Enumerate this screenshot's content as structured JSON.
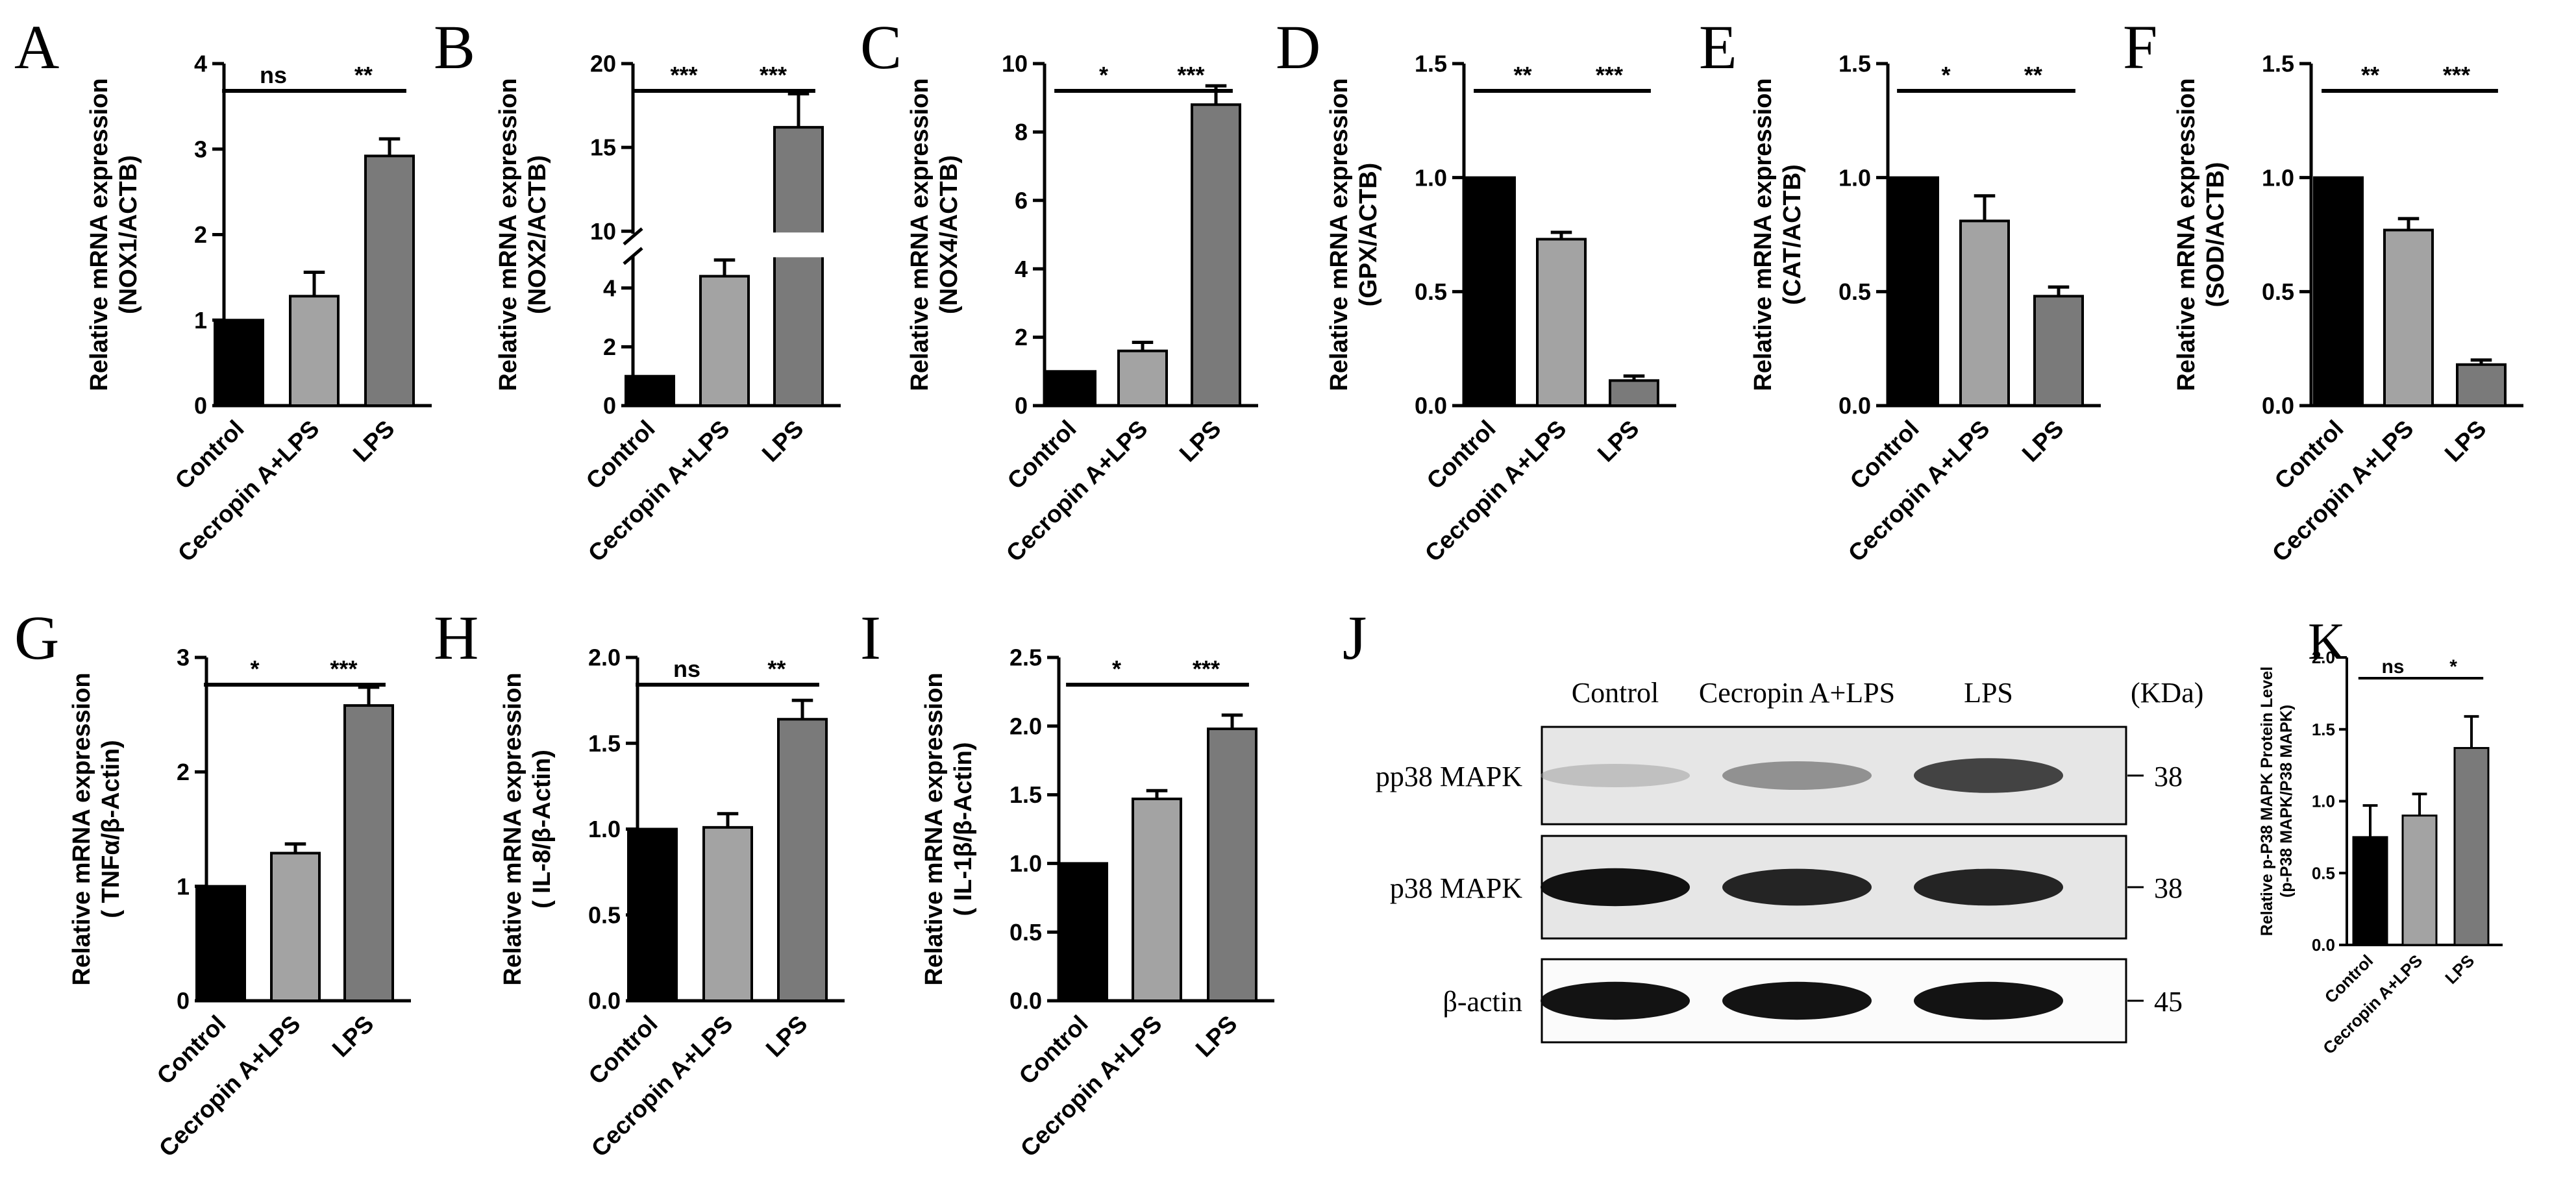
{
  "figure": {
    "panels": [
      "A",
      "B",
      "C",
      "D",
      "E",
      "F",
      "G",
      "H",
      "I",
      "J",
      "K"
    ]
  },
  "colors": {
    "control": "#000000",
    "cecropin": "#a3a3a3",
    "lps": "#7a7a7a",
    "axis": "#000000"
  },
  "chart_data": [
    {
      "panel": "A",
      "type": "bar",
      "categories": [
        "Control",
        "Cecropin A+LPS",
        "LPS"
      ],
      "values": [
        1.0,
        1.28,
        2.92
      ],
      "errors": [
        0.0,
        0.28,
        0.2
      ],
      "ylabel": "Relative mRNA expression",
      "ylabel2": "(NOX1/ACTB)",
      "ylim": [
        0,
        4
      ],
      "yticks": [
        0,
        1,
        2,
        3,
        4
      ],
      "significance": [
        {
          "from": 0,
          "to": 1,
          "label": "ns"
        },
        {
          "from": 1,
          "to": 2,
          "label": "**"
        }
      ]
    },
    {
      "panel": "B",
      "type": "bar",
      "categories": [
        "Control",
        "Cecropin A+LPS",
        "LPS"
      ],
      "values": [
        1.0,
        4.4,
        16.2
      ],
      "errors": [
        0.0,
        0.55,
        2.0
      ],
      "ylabel": "Relative mRNA expression",
      "ylabel2": "(NOX2/ACTB)",
      "ylim": [
        0,
        20
      ],
      "broken_axis": [
        5,
        10
      ],
      "yticks": [
        0,
        2,
        4,
        10,
        15,
        20
      ],
      "significance": [
        {
          "from": 0,
          "to": 1,
          "label": "***"
        },
        {
          "from": 1,
          "to": 2,
          "label": "***"
        }
      ]
    },
    {
      "panel": "C",
      "type": "bar",
      "categories": [
        "Control",
        "Cecropin A+LPS",
        "LPS"
      ],
      "values": [
        1.0,
        1.6,
        8.8
      ],
      "errors": [
        0.0,
        0.25,
        0.55
      ],
      "ylabel": "Relative mRNA expression",
      "ylabel2": "(NOX4/ACTB)",
      "ylim": [
        0,
        10
      ],
      "yticks": [
        0,
        2,
        4,
        6,
        8,
        10
      ],
      "significance": [
        {
          "from": 0,
          "to": 1,
          "label": "*"
        },
        {
          "from": 1,
          "to": 2,
          "label": "***"
        }
      ]
    },
    {
      "panel": "D",
      "type": "bar",
      "categories": [
        "Control",
        "Cecropin A+LPS",
        "LPS"
      ],
      "values": [
        1.0,
        0.73,
        0.11
      ],
      "errors": [
        0.0,
        0.03,
        0.02
      ],
      "ylabel": "Relative mRNA expression",
      "ylabel2": "(GPX/ACTB)",
      "ylim": [
        0,
        1.5
      ],
      "yticks": [
        "0.0",
        "0.5",
        "1.0",
        "1.5"
      ],
      "significance": [
        {
          "from": 0,
          "to": 1,
          "label": "**"
        },
        {
          "from": 1,
          "to": 2,
          "label": "***"
        }
      ]
    },
    {
      "panel": "E",
      "type": "bar",
      "categories": [
        "Control",
        "Cecropin A+LPS",
        "LPS"
      ],
      "values": [
        1.0,
        0.81,
        0.48
      ],
      "errors": [
        0.0,
        0.11,
        0.04
      ],
      "ylabel": "Relative mRNA expression",
      "ylabel2": "(CAT/ACTB)",
      "ylim": [
        0,
        1.5
      ],
      "yticks": [
        "0.0",
        "0.5",
        "1.0",
        "1.5"
      ],
      "significance": [
        {
          "from": 0,
          "to": 1,
          "label": "*"
        },
        {
          "from": 1,
          "to": 2,
          "label": "**"
        }
      ]
    },
    {
      "panel": "F",
      "type": "bar",
      "categories": [
        "Control",
        "Cecropin A+LPS",
        "LPS"
      ],
      "values": [
        1.0,
        0.77,
        0.18
      ],
      "errors": [
        0.0,
        0.05,
        0.02
      ],
      "ylabel": "Relative mRNA expression",
      "ylabel2": "(SOD/ACTB)",
      "ylim": [
        0,
        1.5
      ],
      "yticks": [
        "0.0",
        "0.5",
        "1.0",
        "1.5"
      ],
      "significance": [
        {
          "from": 0,
          "to": 1,
          "label": "**"
        },
        {
          "from": 1,
          "to": 2,
          "label": "***"
        }
      ]
    },
    {
      "panel": "G",
      "type": "bar",
      "categories": [
        "Control",
        "Cecropin A+LPS",
        "LPS"
      ],
      "values": [
        1.0,
        1.29,
        2.58
      ],
      "errors": [
        0.0,
        0.08,
        0.16
      ],
      "ylabel": "Relative mRNA expression",
      "ylabel2": "( TNFα/β-Actin)",
      "ylim": [
        0,
        3
      ],
      "yticks": [
        0,
        1,
        2,
        3
      ],
      "significance": [
        {
          "from": 0,
          "to": 1,
          "label": "*"
        },
        {
          "from": 1,
          "to": 2,
          "label": "***"
        }
      ]
    },
    {
      "panel": "H",
      "type": "bar",
      "categories": [
        "Control",
        "Cecropin A+LPS",
        "LPS"
      ],
      "values": [
        1.0,
        1.01,
        1.64
      ],
      "errors": [
        0.0,
        0.08,
        0.11
      ],
      "ylabel": "Relative mRNA expression",
      "ylabel2": "( IL-8/β-Actin)",
      "ylim": [
        0,
        2.0
      ],
      "yticks": [
        "0.0",
        "0.5",
        "1.0",
        "1.5",
        "2.0"
      ],
      "significance": [
        {
          "from": 0,
          "to": 1,
          "label": "ns"
        },
        {
          "from": 1,
          "to": 2,
          "label": "**"
        }
      ]
    },
    {
      "panel": "I",
      "type": "bar",
      "categories": [
        "Control",
        "Cecropin A+LPS",
        "LPS"
      ],
      "values": [
        1.0,
        1.47,
        1.98
      ],
      "errors": [
        0.0,
        0.06,
        0.1
      ],
      "ylabel": "Relative mRNA expression",
      "ylabel2": "( IL-1β/β-Actin)",
      "ylim": [
        0,
        2.5
      ],
      "yticks": [
        "0.0",
        "0.5",
        "1.0",
        "1.5",
        "2.0",
        "2.5"
      ],
      "significance": [
        {
          "from": 0,
          "to": 1,
          "label": "*"
        },
        {
          "from": 1,
          "to": 2,
          "label": "***"
        }
      ]
    },
    {
      "panel": "K",
      "type": "bar",
      "categories": [
        "Control",
        "Cecropin A+LPS",
        "LPS"
      ],
      "values": [
        0.75,
        0.9,
        1.37
      ],
      "errors": [
        0.22,
        0.15,
        0.22
      ],
      "ylabel": "Relative p-P38 MAPK Protein Level",
      "ylabel2": "(p-P38 MAPK/P38 MAPK)",
      "ylim": [
        0,
        2.0
      ],
      "yticks": [
        "0.0",
        "0.5",
        "1.0",
        "1.5",
        "2.0"
      ],
      "significance": [
        {
          "from": 0,
          "to": 1,
          "label": "ns"
        },
        {
          "from": 1,
          "to": 2,
          "label": "*"
        }
      ]
    }
  ],
  "western_blot": {
    "panel": "J",
    "lanes": [
      "Control",
      "Cecropin A+LPS",
      "LPS"
    ],
    "unit_label": "(KDa)",
    "rows": [
      {
        "label": "pp38 MAPK",
        "kda": "38",
        "intensities": [
          0.25,
          0.5,
          0.8
        ]
      },
      {
        "label": "p38 MAPK",
        "kda": "38",
        "intensities": [
          0.95,
          0.9,
          0.9
        ]
      },
      {
        "label": "β-actin",
        "kda": "45",
        "intensities": [
          0.95,
          0.95,
          0.95
        ]
      }
    ]
  }
}
